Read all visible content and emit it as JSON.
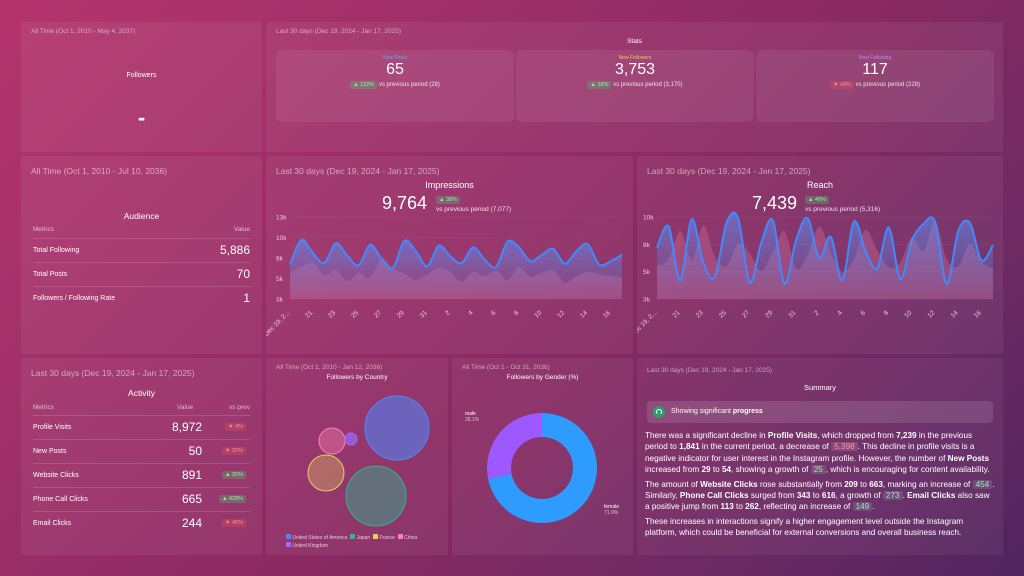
{
  "followers_card": {
    "period": "All Time (Oct 1, 2010 - May 4, 2037)",
    "label": "Followers",
    "value": "-"
  },
  "stats_card": {
    "period": "Last 30 days (Dec 19, 2024 - Jan 17, 2025)",
    "title": "Stats",
    "items": [
      {
        "label": "New Posts",
        "value": "65",
        "change": "▲ 132%",
        "direction": "up",
        "comparison": "vs previous period (28)",
        "label_color": "#5aa8ff"
      },
      {
        "label": "New Followers",
        "value": "3,753",
        "change": "▲ 18%",
        "direction": "up",
        "comparison": "vs previous period (3,170)",
        "label_color": "#f2c44e"
      },
      {
        "label": "New Following",
        "value": "117",
        "change": "▼ 49%",
        "direction": "down",
        "comparison": "vs previous period (228)",
        "label_color": "#b08cff"
      }
    ]
  },
  "audience_card": {
    "period": "All Time (Oct 1, 2010 - Jul 10, 2036)",
    "title": "Audience",
    "col_metrics": "Metrics",
    "col_value": "Value",
    "rows": [
      {
        "label": "Total Following",
        "value": "5,886"
      },
      {
        "label": "Total Posts",
        "value": "70"
      },
      {
        "label": "Followers / Following Rate",
        "value": "1"
      }
    ]
  },
  "impressions_card": {
    "period": "Last 30 days (Dec 19, 2024 - Jan 17, 2025)",
    "title": "Impressions",
    "value": "9,764",
    "change": "▲ 38%",
    "comparison": "vs previous period (7,077)"
  },
  "reach_card": {
    "period": "Last 30 days (Dec 19, 2024 - Jan 17, 2025)",
    "title": "Reach",
    "value": "7,439",
    "change": "▲ 40%",
    "comparison": "vs previous period (5,316)"
  },
  "activity_card": {
    "period": "Last 30 days (Dec 19, 2024 - Jan 17, 2025)",
    "title": "Activity",
    "col_metrics": "Metrics",
    "col_value": "Value",
    "col_prev": "vs prev",
    "rows": [
      {
        "label": "Profile Visits",
        "value": "8,972",
        "change": "▼ 4%",
        "direction": "down"
      },
      {
        "label": "New Posts",
        "value": "50",
        "change": "▼ 32%",
        "direction": "down"
      },
      {
        "label": "Website Clicks",
        "value": "891",
        "change": "▲ 26%",
        "direction": "up"
      },
      {
        "label": "Phone Call Clicks",
        "value": "665",
        "change": "▲ 428%",
        "direction": "up"
      },
      {
        "label": "Email Clicks",
        "value": "244",
        "change": "▼ 40%",
        "direction": "down"
      }
    ]
  },
  "country_card": {
    "period": "All Time (Oct 1, 2010 - Jan 12, 2036)",
    "title": "Followers by Country"
  },
  "gender_card": {
    "period": "All Time (Oct 1 - Oct 31, 2036)",
    "title": "Followers by Gender (%)"
  },
  "summary_card": {
    "period": "Last 30 days (Dec 19, 2024 - Jan 17, 2025)",
    "title": "Summary",
    "progress_text": "Showing significant ",
    "progress_bold": "progress"
  },
  "chart_data": [
    {
      "type": "area",
      "title": "Impressions",
      "x_tick_labels": [
        "Dec 19, 2...",
        "21",
        "23",
        "25",
        "27",
        "29",
        "31",
        "2",
        "4",
        "6",
        "8",
        "10",
        "12",
        "14",
        "16"
      ],
      "y_tick_labels": [
        "3k",
        "5k",
        "8k",
        "10k",
        "13k"
      ],
      "ylim": [
        3000,
        13000
      ],
      "series": [
        {
          "name": "current",
          "color": "#3d8bff",
          "values": [
            7200,
            10200,
            8600,
            7400,
            9800,
            8300,
            7100,
            9600,
            7900,
            6800,
            10100,
            8800,
            7000,
            9500,
            8200,
            7400,
            9300,
            7800,
            6900,
            10000,
            9300,
            7600,
            8400,
            9100,
            7300,
            8800,
            9700,
            7200,
            7600,
            8400
          ]
        },
        {
          "name": "previous",
          "color": "#c07094",
          "values": [
            6300,
            6900,
            7400,
            5900,
            6600,
            5200,
            6200,
            5600,
            7900,
            6700,
            6100,
            5300,
            6000,
            6800,
            6300,
            5100,
            6300,
            5800,
            6400,
            5300,
            6900,
            5700,
            6200,
            6500,
            5000,
            5800,
            6300,
            6000,
            5800,
            5600
          ]
        }
      ]
    },
    {
      "type": "area",
      "title": "Reach",
      "x_tick_labels": [
        "Dec 19, 2...",
        "21",
        "23",
        "25",
        "27",
        "29",
        "31",
        "2",
        "4",
        "6",
        "8",
        "10",
        "12",
        "14",
        "16"
      ],
      "y_tick_labels": [
        "3k",
        "5k",
        "8k",
        "10k"
      ],
      "ylim": [
        3000,
        10000
      ],
      "series": [
        {
          "name": "current",
          "color": "#3d8bff",
          "values": [
            7400,
            9200,
            4600,
            9800,
            6100,
            4900,
            9500,
            9900,
            4400,
            7800,
            9700,
            4300,
            8000,
            9900,
            6500,
            8300,
            4600,
            9600,
            7100,
            5600,
            9100,
            4700,
            8000,
            9400,
            9600,
            4300,
            8800,
            9500,
            6300,
            7600
          ]
        },
        {
          "name": "previous",
          "color": "#c07094",
          "values": [
            5800,
            6400,
            8800,
            6300,
            9300,
            6600,
            5800,
            7700,
            6900,
            5400,
            7000,
            8800,
            5600,
            6800,
            9200,
            7000,
            5300,
            6400,
            8900,
            7200,
            5700,
            6100,
            8300,
            7100,
            9600,
            6400,
            5800,
            7700,
            6200,
            5600
          ]
        }
      ]
    },
    {
      "type": "bubble",
      "title": "Followers by Country",
      "series": [
        {
          "name": "United States of America",
          "color": "#4e88ff"
        },
        {
          "name": "Japan",
          "color": "#2fb590"
        },
        {
          "name": "France",
          "color": "#e8ce62"
        },
        {
          "name": "China",
          "color": "#ff7fb5"
        },
        {
          "name": "United Kingdom",
          "color": "#9b6bff"
        }
      ]
    },
    {
      "type": "pie",
      "title": "Followers by Gender (%)",
      "slices": [
        {
          "label": "male",
          "value": 28.1,
          "display": "28.1%",
          "color": "#9d59ff"
        },
        {
          "label": "female",
          "value": 71.9,
          "display": "71.9%",
          "color": "#2e9bff"
        }
      ]
    }
  ]
}
